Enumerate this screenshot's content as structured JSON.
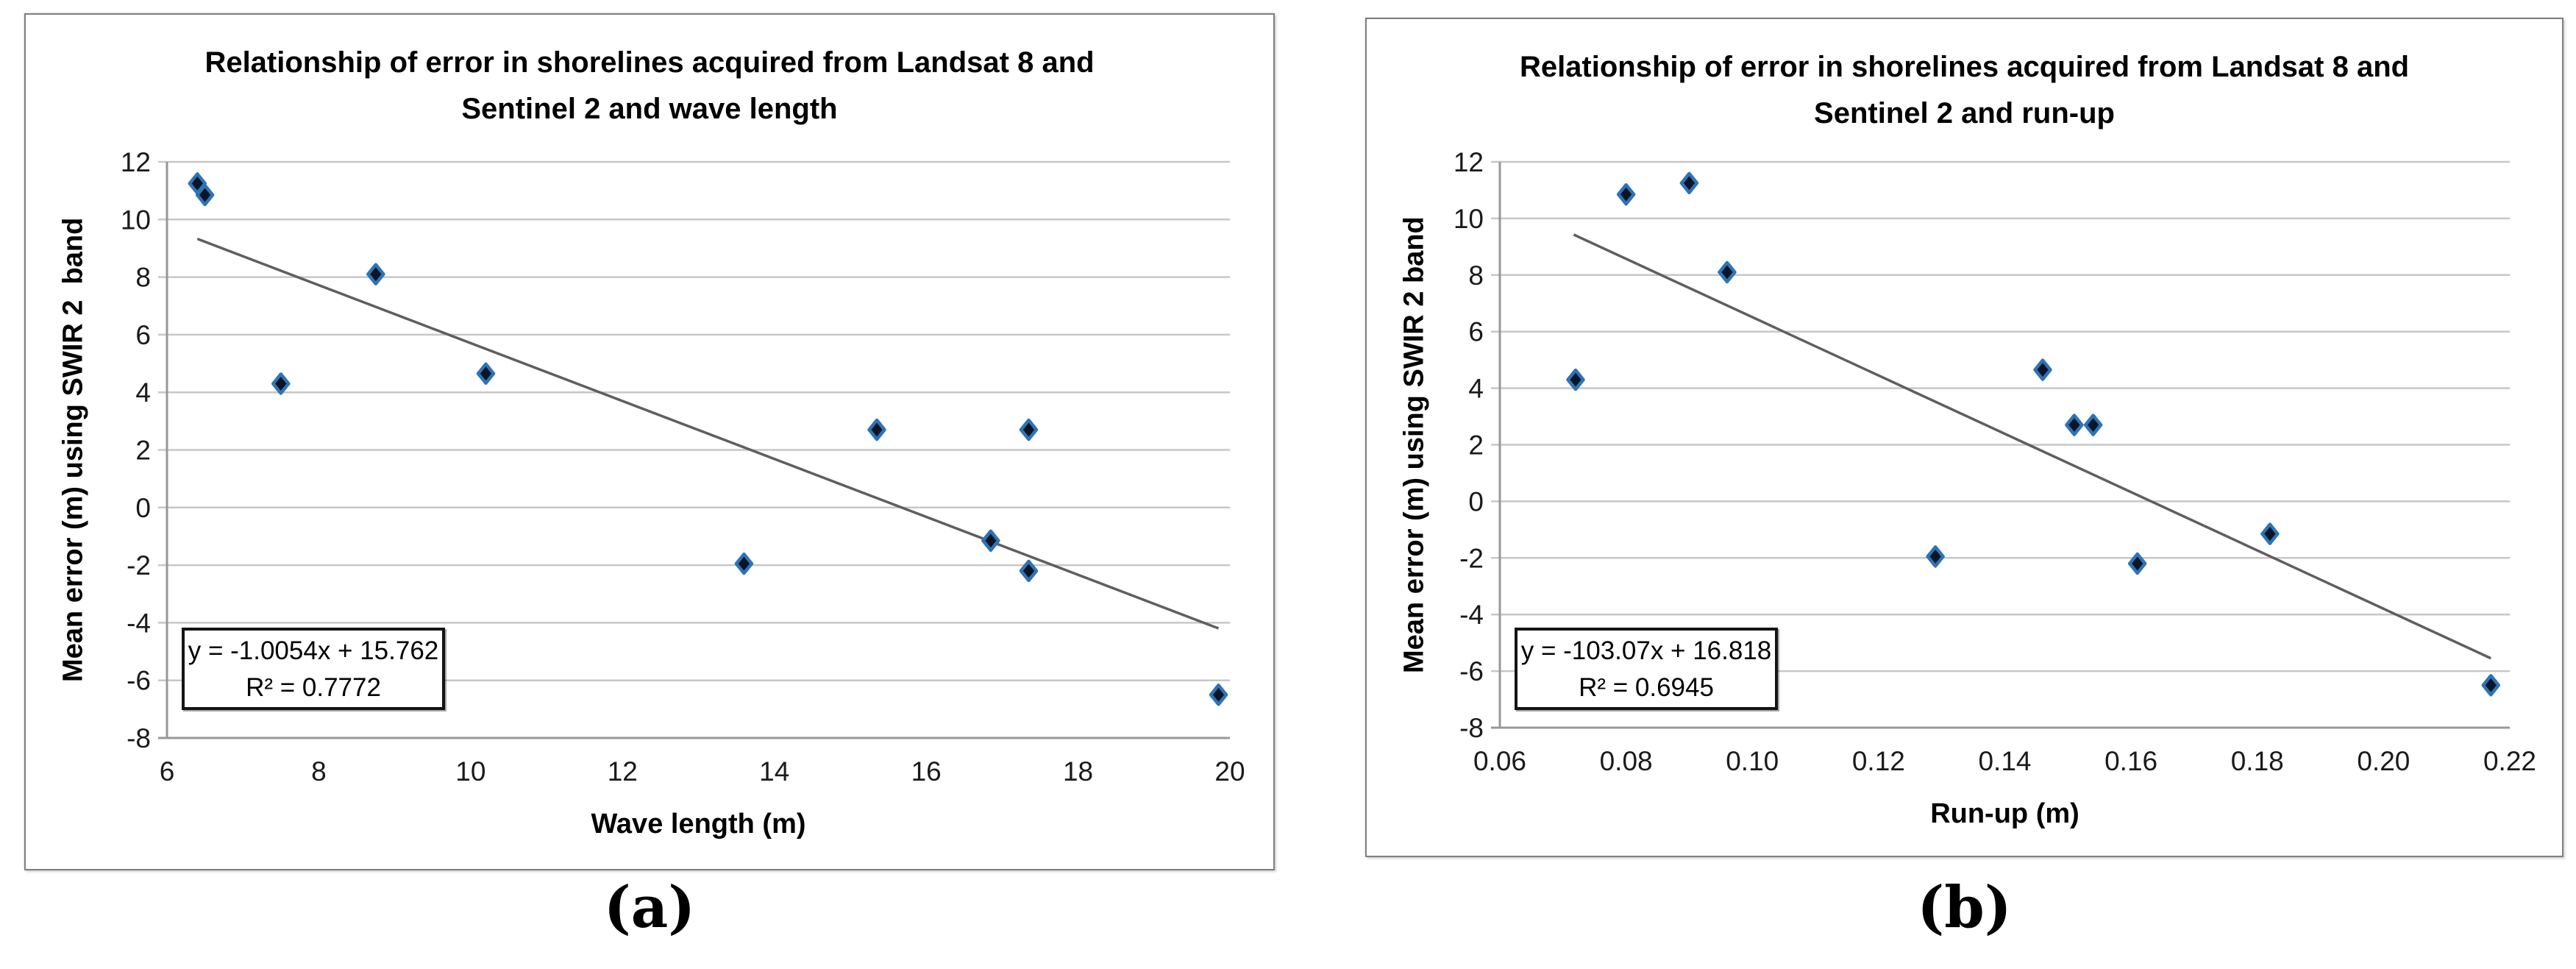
{
  "figure": {
    "background": "#ffffff",
    "captions": {
      "a": "(a)",
      "b": "(b)"
    }
  },
  "colors": {
    "marker_fill": "#0a1526",
    "marker_stroke": "#2e74b5",
    "gridline": "#c7c7c7",
    "axis_line": "#989898",
    "trendline": "#5f5f5f",
    "frame_border": "#7f7f7f",
    "tick_text": "#1a1a1a"
  },
  "chart_data": [
    {
      "type": "scatter",
      "title_line1": "Relationship of error in shorelines acquired from Landsat 8 and",
      "title_line2": "Sentinel 2 and wave length",
      "xlabel": "Wave length (m)",
      "ylabel": "Mean error (m) using SWIR 2  band",
      "xlim": [
        6,
        20
      ],
      "ylim": [
        -8,
        12
      ],
      "xticks": [
        6,
        8,
        10,
        12,
        14,
        16,
        18,
        20
      ],
      "xtick_labels": [
        "6",
        "8",
        "10",
        "12",
        "14",
        "16",
        "18",
        "20"
      ],
      "yticks": [
        12,
        10,
        8,
        6,
        4,
        2,
        0,
        -2,
        -4,
        -6,
        -8
      ],
      "ytick_labels": [
        "12",
        "10",
        "8",
        "6",
        "4",
        "2",
        "0",
        "-2",
        "-4",
        "-6",
        "-8"
      ],
      "grid": "horizontal-only",
      "legend": "none",
      "points": [
        [
          6.4,
          11.25
        ],
        [
          6.5,
          10.85
        ],
        [
          7.5,
          4.3
        ],
        [
          8.75,
          8.1
        ],
        [
          10.2,
          4.65
        ],
        [
          13.6,
          -1.95
        ],
        [
          15.35,
          2.7
        ],
        [
          16.85,
          -1.15
        ],
        [
          17.35,
          2.7
        ],
        [
          17.35,
          -2.2
        ],
        [
          19.85,
          -6.5
        ]
      ],
      "trendline": {
        "slope": -1.0054,
        "intercept": 15.762,
        "x_start": 6.4,
        "x_end": 19.85,
        "equation_label": "y = -1.0054x + 15.762",
        "r2_label": "R² = 0.7772"
      },
      "caption": "(a)"
    },
    {
      "type": "scatter",
      "title_line1": "Relationship of error in shorelines acquired from Landsat 8 and",
      "title_line2": "Sentinel 2 and run-up",
      "xlabel": "Run-up (m)",
      "ylabel": "Mean error (m) using SWIR 2 band",
      "xlim": [
        0.06,
        0.22
      ],
      "ylim": [
        -8,
        12
      ],
      "xticks": [
        0.06,
        0.08,
        0.1,
        0.12,
        0.14,
        0.16,
        0.18,
        0.2,
        0.22
      ],
      "xtick_labels": [
        "0.06",
        "0.08",
        "0.10",
        "0.12",
        "0.14",
        "0.16",
        "0.18",
        "0.20",
        "0.22"
      ],
      "yticks": [
        12,
        10,
        8,
        6,
        4,
        2,
        0,
        -2,
        -4,
        -6,
        -8
      ],
      "ytick_labels": [
        "12",
        "10",
        "8",
        "6",
        "4",
        "2",
        "0",
        "-2",
        "-4",
        "-6",
        "-8"
      ],
      "grid": "horizontal-only",
      "legend": "none",
      "points": [
        [
          0.072,
          4.3
        ],
        [
          0.08,
          10.85
        ],
        [
          0.09,
          11.25
        ],
        [
          0.096,
          8.1
        ],
        [
          0.129,
          -1.95
        ],
        [
          0.146,
          4.65
        ],
        [
          0.151,
          2.7
        ],
        [
          0.154,
          2.7
        ],
        [
          0.161,
          -2.2
        ],
        [
          0.182,
          -1.15
        ],
        [
          0.217,
          -6.5
        ]
      ],
      "trendline": {
        "slope": -103.07,
        "intercept": 16.818,
        "x_start": 0.0717,
        "x_end": 0.217,
        "equation_label": "y = -103.07x + 16.818",
        "r2_label": "R² = 0.6945"
      },
      "caption": "(b)"
    }
  ]
}
